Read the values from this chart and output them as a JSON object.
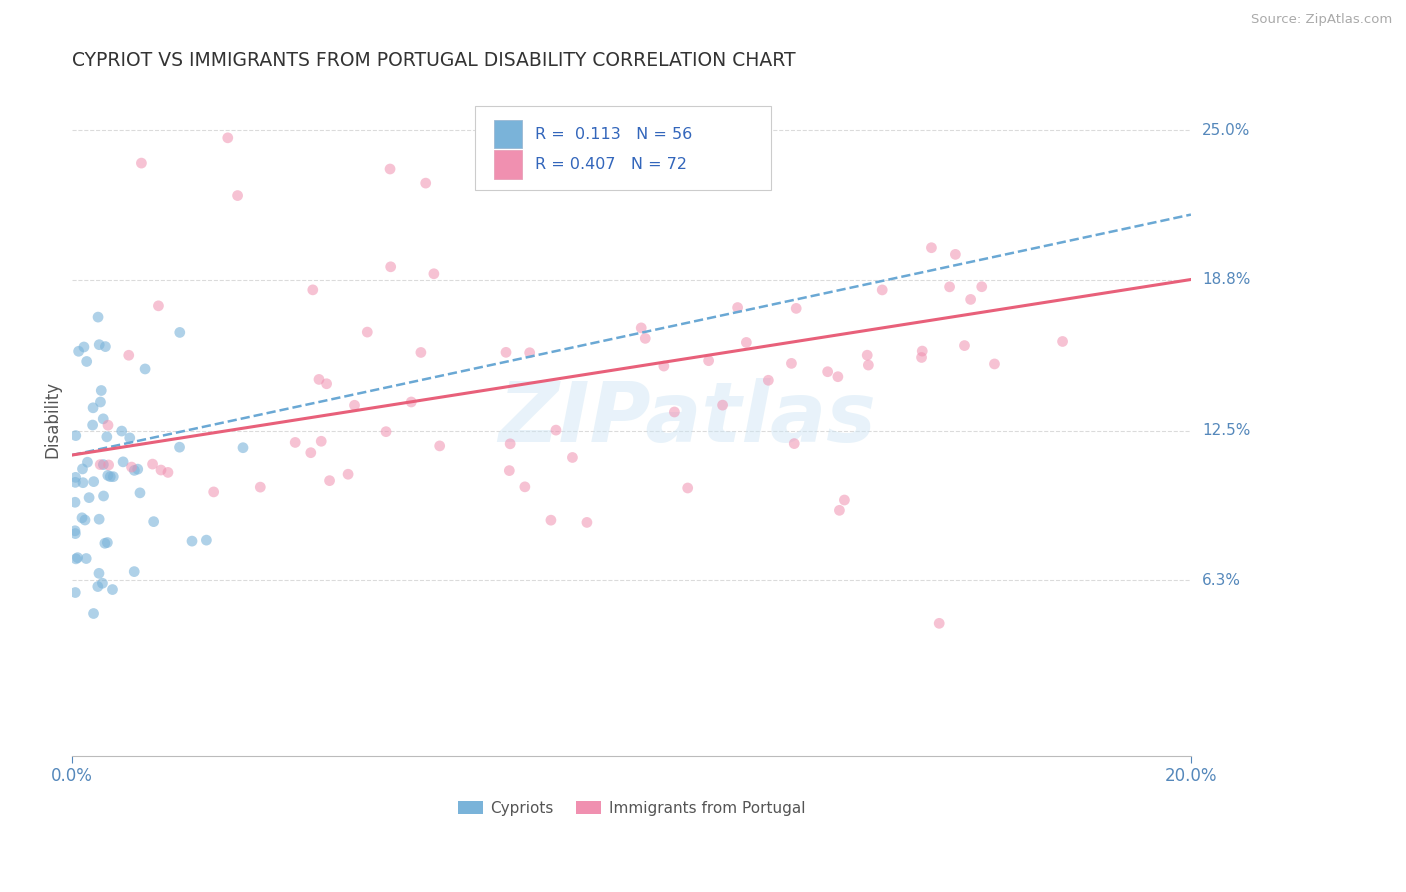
{
  "title": "CYPRIOT VS IMMIGRANTS FROM PORTUGAL DISABILITY CORRELATION CHART",
  "source": "Source: ZipAtlas.com",
  "ylabel": "Disability",
  "xlim": [
    0.0,
    0.2
  ],
  "ylim": [
    -0.01,
    0.27
  ],
  "ytick_values": [
    0.063,
    0.125,
    0.188,
    0.25
  ],
  "ytick_labels": [
    "6.3%",
    "12.5%",
    "18.8%",
    "25.0%"
  ],
  "xtick_values": [
    0.0,
    0.2
  ],
  "xtick_labels": [
    "0.0%",
    "20.0%"
  ],
  "watermark": "ZIPatlas",
  "cypriot_color": "#7ab3d9",
  "portugal_color": "#f090b0",
  "cypriot_line_color": "#6aa8d4",
  "portugal_line_color": "#e8607a",
  "background_color": "#ffffff",
  "grid_color": "#cccccc",
  "title_color": "#333333",
  "axis_label_color": "#555555",
  "tick_color": "#5588bb",
  "right_label_color": "#5588bb",
  "legend_blue_text": "R =  0.113   N = 56",
  "legend_pink_text": "R = 0.407   N = 72",
  "bottom_legend_1": "Cypriots",
  "bottom_legend_2": "Immigrants from Portugal",
  "cypriot_line_x0": 0.0,
  "cypriot_line_x1": 0.2,
  "cypriot_line_y0": 0.115,
  "cypriot_line_y1": 0.215,
  "portugal_line_x0": 0.0,
  "portugal_line_x1": 0.2,
  "portugal_line_y0": 0.115,
  "portugal_line_y1": 0.188
}
